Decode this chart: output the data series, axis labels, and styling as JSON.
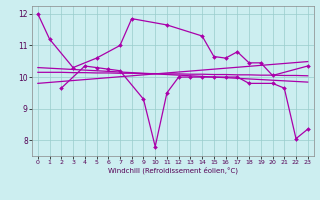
{
  "x": [
    0,
    1,
    2,
    3,
    4,
    5,
    6,
    7,
    8,
    9,
    10,
    11,
    12,
    13,
    14,
    15,
    16,
    17,
    18,
    19,
    20,
    21,
    22,
    23
  ],
  "series": {
    "s1": [
      12.0,
      11.2,
      null,
      10.3,
      null,
      10.6,
      null,
      11.0,
      11.85,
      null,
      null,
      11.65,
      null,
      null,
      11.3,
      10.65,
      10.6,
      10.8,
      10.45,
      10.45,
      10.05,
      null,
      null,
      10.35
    ],
    "s2": [
      null,
      null,
      9.65,
      null,
      10.35,
      10.3,
      10.25,
      10.2,
      null,
      9.3,
      7.8,
      9.5,
      10.0,
      10.0,
      10.0,
      10.0,
      10.0,
      10.0,
      9.8,
      null,
      9.8,
      9.65,
      8.05,
      8.35
    ],
    "trend1": [
      10.3,
      10.28,
      10.26,
      10.24,
      10.22,
      10.2,
      10.18,
      10.16,
      10.14,
      10.12,
      10.1,
      10.08,
      10.06,
      10.04,
      10.02,
      10.0,
      9.98,
      9.96,
      9.94,
      9.92,
      9.9,
      9.88,
      9.86,
      9.84
    ],
    "trend2": [
      10.15,
      10.15,
      10.15,
      10.14,
      10.14,
      10.13,
      10.13,
      10.12,
      10.12,
      10.11,
      10.11,
      10.1,
      10.1,
      10.09,
      10.09,
      10.08,
      10.08,
      10.07,
      10.07,
      10.06,
      10.06,
      10.05,
      10.05,
      10.04
    ],
    "trend3": [
      9.8,
      9.83,
      9.86,
      9.89,
      9.92,
      9.95,
      9.98,
      10.01,
      10.04,
      10.07,
      10.1,
      10.13,
      10.16,
      10.19,
      10.22,
      10.25,
      10.28,
      10.31,
      10.34,
      10.37,
      10.4,
      10.43,
      10.46,
      10.49
    ]
  },
  "color": "#aa00aa",
  "bg_color": "#cceef0",
  "grid_color": "#99cccc",
  "ylim": [
    7.5,
    12.25
  ],
  "xlim": [
    -0.5,
    23.5
  ],
  "xlabel": "Windchill (Refroidissement éolien,°C)",
  "yticks": [
    8,
    9,
    10,
    11,
    12
  ],
  "xticks": [
    0,
    1,
    2,
    3,
    4,
    5,
    6,
    7,
    8,
    9,
    10,
    11,
    12,
    13,
    14,
    15,
    16,
    17,
    18,
    19,
    20,
    21,
    22,
    23
  ],
  "marker": "D",
  "markersize": 2.0,
  "linewidth": 0.9
}
